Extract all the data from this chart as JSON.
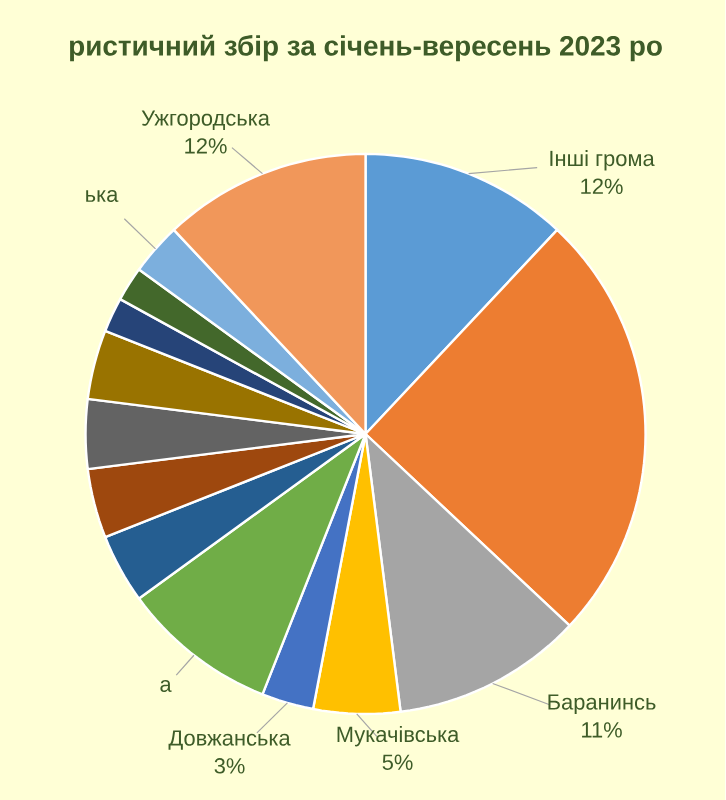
{
  "chart_data": {
    "type": "pie",
    "title": "ристичний збір за січень-вересень 2023 ро",
    "categories": [
      "Інші грома",
      null,
      "Баранинсь",
      "Мукачівська",
      "Довжанська",
      "а",
      null,
      null,
      null,
      null,
      null,
      null,
      "ька",
      "Ужгородська"
    ],
    "values": [
      12,
      25,
      11,
      5,
      3,
      9,
      4,
      4,
      4,
      4,
      2,
      2,
      3,
      12
    ],
    "value_labels": [
      "12%",
      null,
      "11%",
      "5%",
      "3%",
      null,
      null,
      null,
      null,
      null,
      null,
      null,
      null,
      "12%"
    ],
    "colors": [
      "#5b9bd5",
      "#ed7d31",
      "#a5a5a5",
      "#ffc000",
      "#4472c4",
      "#70ad47",
      "#255e91",
      "#9e480e",
      "#636363",
      "#997300",
      "#264478",
      "#43682b",
      "#7cafdd",
      "#f1975a"
    ]
  }
}
